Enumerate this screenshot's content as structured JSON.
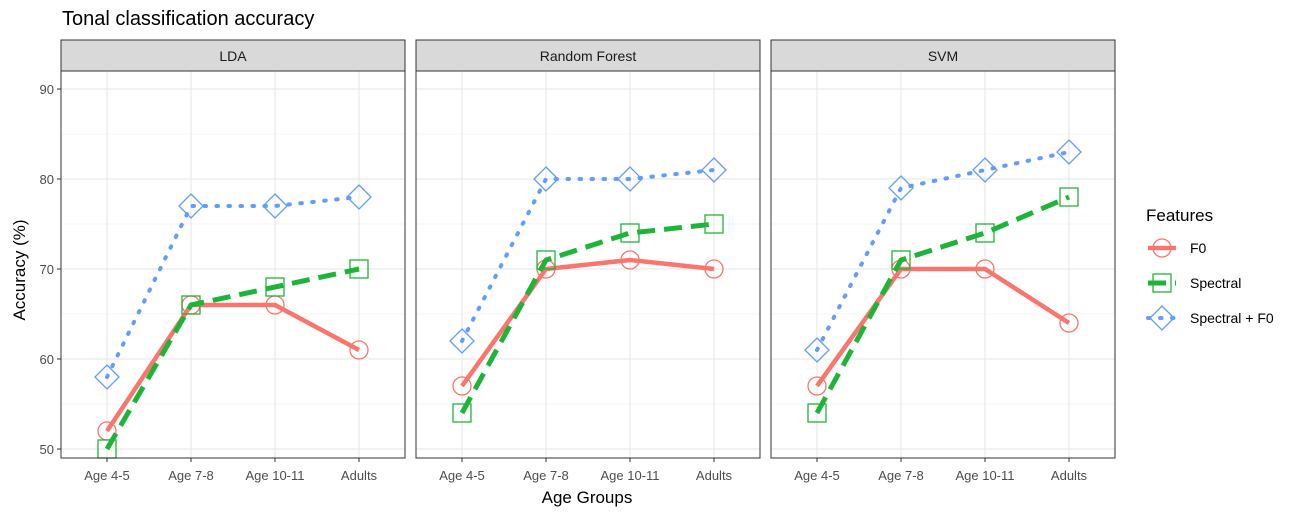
{
  "chart_data": {
    "type": "line",
    "title": "Tonal classification accuracy",
    "xlabel": "Age Groups",
    "ylabel": "Accuracy (%)",
    "categories": [
      "Age 4-5",
      "Age 7-8",
      "Age 10-11",
      "Adults"
    ],
    "ylim": [
      49,
      92
    ],
    "yticks": [
      50,
      60,
      70,
      80,
      90
    ],
    "grid": true,
    "legend": {
      "title": "Features",
      "position": "right",
      "entries": [
        "F0",
        "Spectral",
        "Spectral + F0"
      ]
    },
    "series_styles": [
      {
        "name": "F0",
        "color": "#F8766D",
        "line": "solid",
        "marker": "circle"
      },
      {
        "name": "Spectral",
        "color": "#1DB537",
        "marker_color": "#22B33A",
        "line": "dashed",
        "marker": "square"
      },
      {
        "name": "Spectral + F0",
        "color": "#619CFF",
        "line": "dotted",
        "marker": "diamond"
      }
    ],
    "panels": [
      {
        "label": "LDA",
        "series": [
          {
            "name": "F0",
            "values": [
              52,
              66,
              66,
              61
            ]
          },
          {
            "name": "Spectral",
            "values": [
              50,
              66,
              68,
              70
            ]
          },
          {
            "name": "Spectral + F0",
            "values": [
              58,
              77,
              77,
              78
            ]
          }
        ]
      },
      {
        "label": "Random Forest",
        "series": [
          {
            "name": "F0",
            "values": [
              57,
              70,
              71,
              70
            ]
          },
          {
            "name": "Spectral",
            "values": [
              54,
              71,
              74,
              75
            ]
          },
          {
            "name": "Spectral + F0",
            "values": [
              62,
              80,
              80,
              81
            ]
          }
        ]
      },
      {
        "label": "SVM",
        "series": [
          {
            "name": "F0",
            "values": [
              57,
              70,
              70,
              64
            ]
          },
          {
            "name": "Spectral",
            "values": [
              54,
              71,
              74,
              78
            ]
          },
          {
            "name": "Spectral + F0",
            "values": [
              61,
              79,
              81,
              83
            ]
          }
        ]
      }
    ]
  }
}
